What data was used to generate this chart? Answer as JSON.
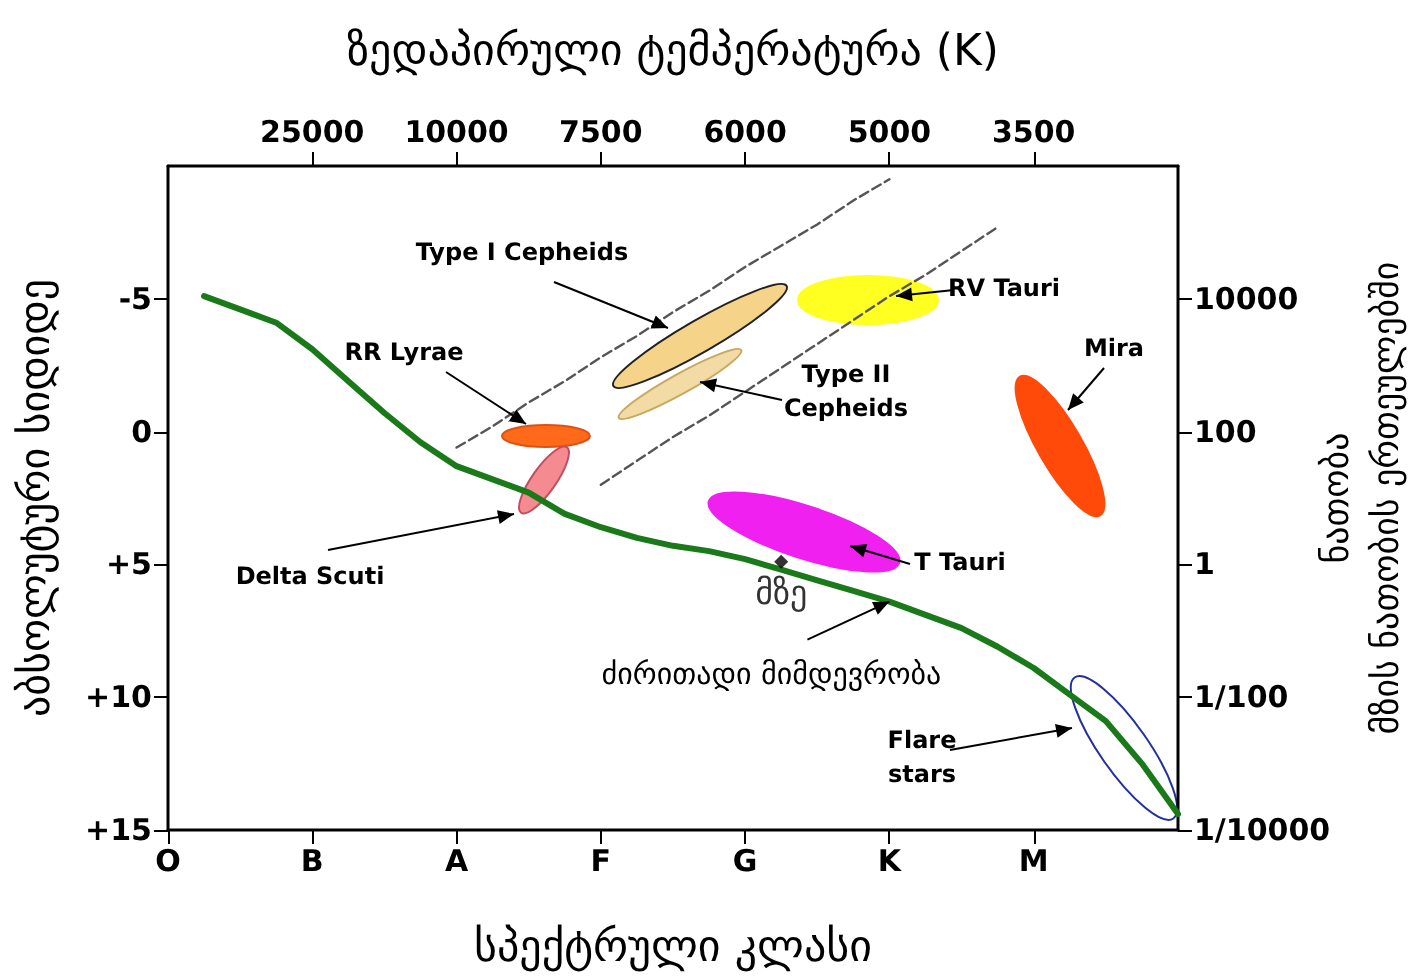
{
  "chart_data": {
    "type": "line",
    "xlabel": "სპექტრული კლასი",
    "x2label": "ზედაპირული ტემპერატურა (K)",
    "ylabel": "აბსოლუტური სიდიდე",
    "y2label": "ნათობა\nმზის ნათობის ერთეულებში",
    "categories": [
      "O",
      null,
      null,
      null,
      "B",
      null,
      null,
      null,
      "A",
      null,
      null,
      null,
      "F",
      null,
      null,
      null,
      "G",
      null,
      null,
      null,
      "K",
      null,
      null,
      null,
      "M",
      null,
      null,
      null,
      null
    ],
    "ylim": [
      15,
      -10
    ],
    "yticks": [
      -5,
      0,
      {
        "value": 5,
        "label": "+5"
      },
      {
        "value": 10,
        "label": "+10"
      },
      {
        "value": 15,
        "label": "+15"
      }
    ],
    "y2lim": [
      0.0001,
      1000000
    ],
    "y2ticks": [
      10000,
      100,
      1,
      {
        "value": 0.01,
        "label": "1/100"
      },
      {
        "value": 0.0001,
        "label": "1/10000"
      }
    ],
    "log": "y2",
    "grid": false,
    "series": [
      {
        "color": "#1a7a1a",
        "marker": "none",
        "line_style": "solid",
        "values": [
          null,
          -5.1,
          -4.6,
          -4.1,
          -3.1,
          -1.9,
          -0.7,
          0.4,
          1.3,
          1.8,
          2.3,
          3.1,
          3.6,
          4.0,
          4.3,
          4.5,
          4.8,
          5.2,
          5.6,
          6.0,
          6.4,
          6.9,
          7.4,
          8.1,
          8.9,
          9.9,
          10.9,
          12.5,
          14.4
        ]
      },
      {
        "color": "#555555",
        "marker": "none",
        "line_style": "dashed",
        "values": [
          null,
          null,
          null,
          null,
          null,
          null,
          null,
          null,
          0.6,
          -0.2,
          -1.1,
          -1.9,
          -2.8,
          -3.6,
          -4.5,
          -5.3,
          -6.2,
          -7.0,
          -7.8,
          -8.7,
          -9.5,
          null,
          null,
          null,
          null,
          null,
          null,
          null,
          null
        ]
      },
      {
        "color": "#555555",
        "marker": "none",
        "line_style": "dashed",
        "values": [
          null,
          null,
          null,
          null,
          null,
          null,
          null,
          null,
          null,
          null,
          null,
          null,
          2.0,
          1.1,
          0.2,
          -0.6,
          -1.5,
          -2.4,
          -3.3,
          -4.2,
          -5.1,
          -5.9,
          -6.8,
          -7.7,
          null,
          null,
          null,
          null,
          null
        ]
      },
      {
        "type": "scatter",
        "name": "მზე",
        "color": "#000000",
        "marker": "diamond",
        "values": [
          null,
          null,
          null,
          null,
          null,
          null,
          null,
          null,
          null,
          null,
          null,
          null,
          null,
          null,
          null,
          null,
          null,
          4.9,
          null,
          null,
          null,
          null,
          null,
          null,
          null,
          null,
          null,
          null,
          null
        ]
      }
    ],
    "annotations": [
      "Type I  Cepheids",
      "RR Lyrae",
      "Type II\nCepheids",
      "RV Tauri",
      "Mira",
      "Delta Scuti",
      "T Tauri",
      {
        "text": "ძირითადი მიმდევრობა",
        "x": "K",
        "y": 6.4
      },
      "Flare\nstars",
      "25000",
      "10000",
      "7500",
      "6000",
      "5000",
      "3500"
    ]
  }
}
